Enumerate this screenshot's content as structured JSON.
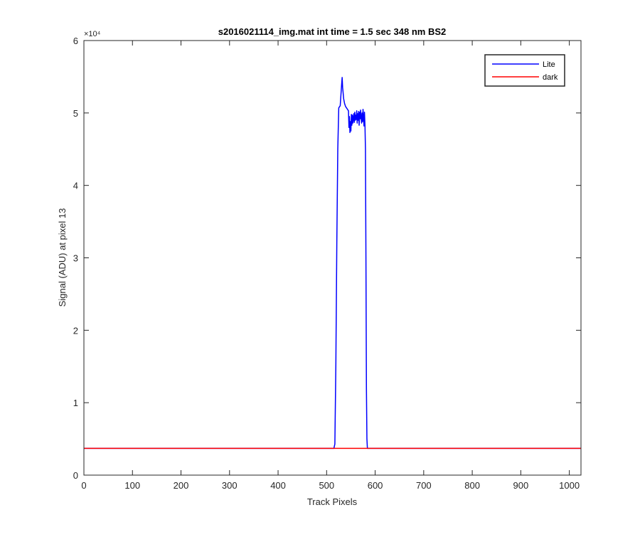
{
  "colors": {
    "lite": "#0000ff",
    "dark": "#ff0000",
    "axes": "#262626",
    "background": "#ffffff"
  },
  "chart_data": {
    "type": "line",
    "title": "s2016021114_img.mat int time = 1.5 sec  348 nm BS2",
    "xlabel": "Track Pixels",
    "ylabel": "Signal (ADU) at pixel 13",
    "xlim": [
      0,
      1024
    ],
    "ylim": [
      0,
      60000
    ],
    "y_exponent_label": "×10⁴",
    "x_ticks": [
      0,
      100,
      200,
      300,
      400,
      500,
      600,
      700,
      800,
      900,
      1000
    ],
    "x_tick_labels": [
      "0",
      "100",
      "200",
      "300",
      "400",
      "500",
      "600",
      "700",
      "800",
      "900",
      "1000"
    ],
    "y_ticks": [
      0,
      10000,
      20000,
      30000,
      40000,
      50000,
      60000
    ],
    "y_tick_labels": [
      "0",
      "1",
      "2",
      "3",
      "4",
      "5",
      "6"
    ],
    "grid": false,
    "legend_position": "top-right",
    "series": [
      {
        "name": "Lite",
        "color": "#0000ff",
        "x": [
          0,
          100,
          200,
          300,
          400,
          500,
          515,
          517,
          519,
          521,
          523,
          525,
          527,
          528,
          529,
          530,
          531,
          532,
          533,
          534,
          535,
          537,
          539,
          541,
          543,
          545,
          546,
          547,
          548,
          549,
          550,
          551,
          552,
          553,
          554,
          555,
          556,
          557,
          558,
          559,
          560,
          561,
          562,
          563,
          564,
          565,
          566,
          567,
          568,
          569,
          570,
          571,
          572,
          573,
          574,
          575,
          576,
          577,
          578,
          579,
          580,
          581,
          582,
          583,
          584,
          585,
          600,
          700,
          800,
          900,
          1024
        ],
        "y": [
          3700,
          3700,
          3700,
          3700,
          3700,
          3700,
          3700,
          4300,
          15000,
          32000,
          45000,
          50700,
          50900,
          51000,
          52000,
          53000,
          54000,
          54900,
          53500,
          52800,
          52000,
          51300,
          50900,
          50700,
          50500,
          50300,
          48000,
          49500,
          47300,
          48800,
          47500,
          49800,
          48300,
          49700,
          48600,
          49300,
          49900,
          48700,
          50100,
          49000,
          49700,
          49100,
          50300,
          48600,
          49900,
          49000,
          50200,
          48300,
          50100,
          49200,
          50400,
          49300,
          48600,
          50000,
          48800,
          50500,
          49400,
          48200,
          50100,
          48300,
          45000,
          30000,
          12000,
          5000,
          3700,
          3700,
          3700,
          3700,
          3700,
          3700,
          3700
        ]
      },
      {
        "name": "dark",
        "color": "#ff0000",
        "x": [
          0,
          1024
        ],
        "y": [
          3700,
          3700
        ]
      }
    ]
  }
}
